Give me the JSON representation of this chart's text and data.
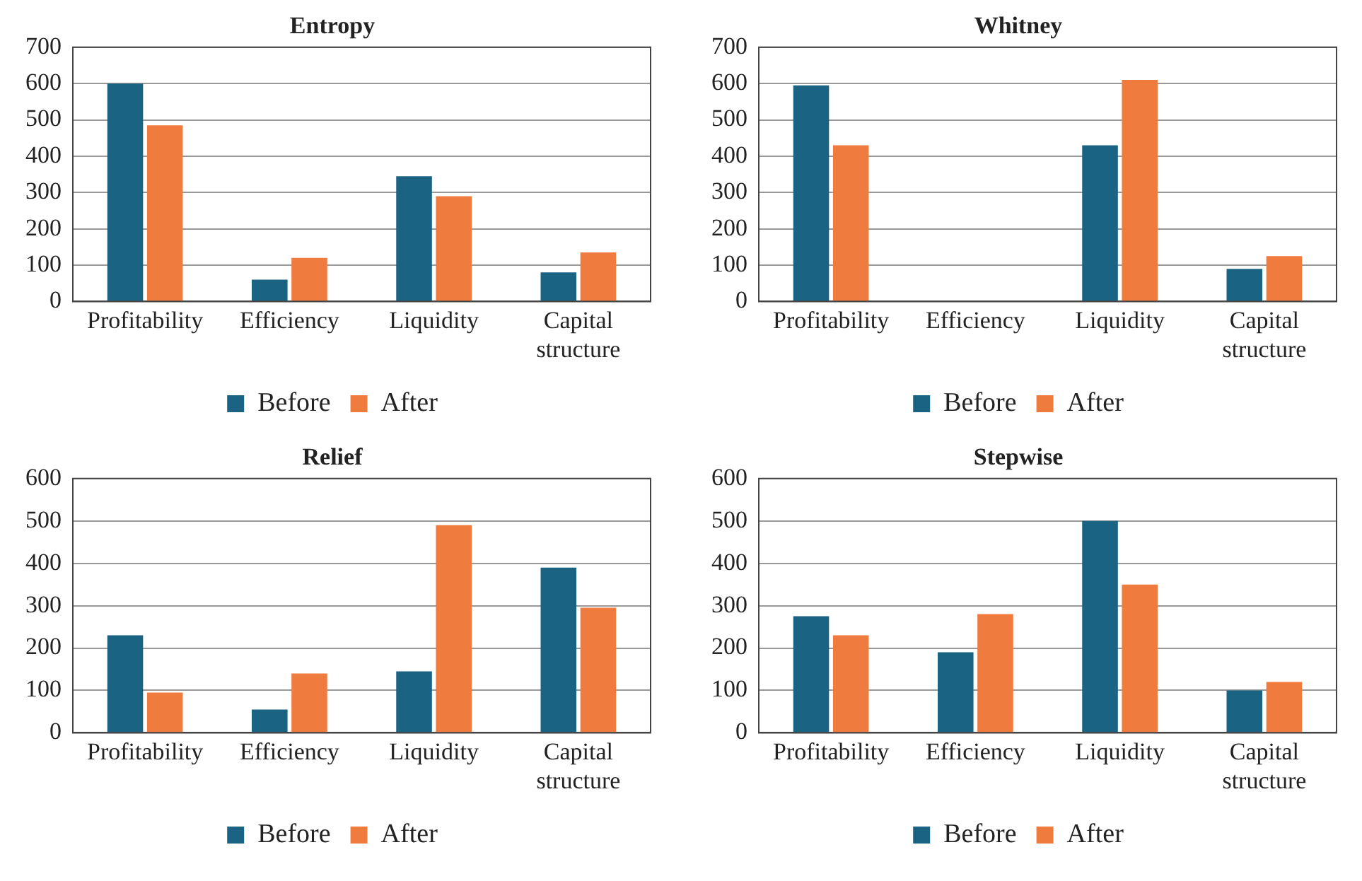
{
  "chart_data": [
    {
      "type": "bar",
      "title": "Entropy",
      "categories": [
        "Profitability",
        "Efficiency",
        "Liquidity",
        "Capital structure"
      ],
      "series": [
        {
          "name": "Before",
          "color": "#1b6382",
          "values": [
            600,
            60,
            345,
            80
          ]
        },
        {
          "name": "After",
          "color": "#f07b3f",
          "values": [
            485,
            120,
            290,
            135
          ]
        }
      ],
      "ylim": [
        0,
        700
      ],
      "yticks": [
        0,
        100,
        200,
        300,
        400,
        500,
        600,
        700
      ],
      "grid": "y",
      "legend": "bottom"
    },
    {
      "type": "bar",
      "title": "Whitney",
      "categories": [
        "Profitability",
        "Efficiency",
        "Liquidity",
        "Capital structure"
      ],
      "series": [
        {
          "name": "Before",
          "color": "#1b6382",
          "values": [
            595,
            null,
            430,
            90
          ]
        },
        {
          "name": "After",
          "color": "#f07b3f",
          "values": [
            430,
            null,
            610,
            125
          ]
        }
      ],
      "ylim": [
        0,
        700
      ],
      "yticks": [
        0,
        100,
        200,
        300,
        400,
        500,
        600,
        700
      ],
      "grid": "y",
      "legend": "bottom"
    },
    {
      "type": "bar",
      "title": "Relief",
      "categories": [
        "Profitability",
        "Efficiency",
        "Liquidity",
        "Capital structure"
      ],
      "series": [
        {
          "name": "Before",
          "color": "#1b6382",
          "values": [
            230,
            55,
            145,
            390
          ]
        },
        {
          "name": "After",
          "color": "#f07b3f",
          "values": [
            95,
            140,
            490,
            295
          ]
        }
      ],
      "ylim": [
        0,
        600
      ],
      "yticks": [
        0,
        100,
        200,
        300,
        400,
        500,
        600
      ],
      "grid": "y",
      "legend": "bottom"
    },
    {
      "type": "bar",
      "title": "Stepwise",
      "categories": [
        "Profitability",
        "Efficiency",
        "Liquidity",
        "Capital structure"
      ],
      "series": [
        {
          "name": "Before",
          "color": "#1b6382",
          "values": [
            275,
            190,
            500,
            100
          ]
        },
        {
          "name": "After",
          "color": "#f07b3f",
          "values": [
            230,
            280,
            350,
            120
          ]
        }
      ],
      "ylim": [
        0,
        600
      ],
      "yticks": [
        0,
        100,
        200,
        300,
        400,
        500,
        600
      ],
      "grid": "y",
      "legend": "bottom"
    }
  ]
}
